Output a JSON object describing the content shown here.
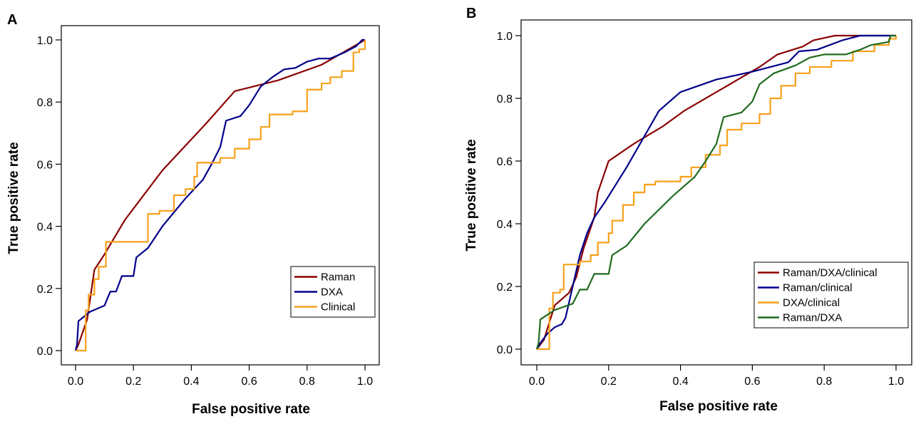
{
  "chart_data": [
    {
      "type": "line",
      "panel_label": "A",
      "xlabel": "False positive rate",
      "ylabel": "True positive rate",
      "xlim": [
        0,
        1
      ],
      "ylim": [
        0,
        1
      ],
      "xticks": [
        "0.0",
        "0.2",
        "0.4",
        "0.6",
        "0.8",
        "1.0"
      ],
      "yticks": [
        "0.0",
        "0.2",
        "0.4",
        "0.6",
        "0.8",
        "1.0"
      ],
      "grid": false,
      "legend_position": "bottom-right",
      "series": [
        {
          "name": "Raman",
          "color": "#8b0000",
          "step": false,
          "points": [
            [
              0.0,
              0.0
            ],
            [
              0.01,
              0.02
            ],
            [
              0.04,
              0.1
            ],
            [
              0.065,
              0.26
            ],
            [
              0.1,
              0.31
            ],
            [
              0.17,
              0.42
            ],
            [
              0.3,
              0.58
            ],
            [
              0.45,
              0.73
            ],
            [
              0.55,
              0.835
            ],
            [
              0.7,
              0.87
            ],
            [
              0.85,
              0.92
            ],
            [
              1.0,
              1.0
            ]
          ]
        },
        {
          "name": "DXA",
          "color": "#00008b",
          "step": false,
          "points": [
            [
              0.0,
              0.0
            ],
            [
              0.005,
              0.02
            ],
            [
              0.01,
              0.095
            ],
            [
              0.05,
              0.125
            ],
            [
              0.1,
              0.145
            ],
            [
              0.12,
              0.19
            ],
            [
              0.14,
              0.19
            ],
            [
              0.16,
              0.24
            ],
            [
              0.2,
              0.24
            ],
            [
              0.21,
              0.3
            ],
            [
              0.25,
              0.33
            ],
            [
              0.3,
              0.4
            ],
            [
              0.38,
              0.49
            ],
            [
              0.44,
              0.55
            ],
            [
              0.47,
              0.6
            ],
            [
              0.5,
              0.655
            ],
            [
              0.52,
              0.74
            ],
            [
              0.57,
              0.755
            ],
            [
              0.6,
              0.79
            ],
            [
              0.64,
              0.85
            ],
            [
              0.68,
              0.88
            ],
            [
              0.72,
              0.905
            ],
            [
              0.76,
              0.91
            ],
            [
              0.8,
              0.93
            ],
            [
              0.84,
              0.94
            ],
            [
              0.88,
              0.94
            ],
            [
              0.93,
              0.96
            ],
            [
              0.97,
              0.98
            ],
            [
              0.99,
              1.0
            ],
            [
              1.0,
              1.0
            ]
          ]
        },
        {
          "name": "Clinical",
          "color": "#f7a11a",
          "step": true,
          "points": [
            [
              0.0,
              0.0
            ],
            [
              0.035,
              0.0
            ],
            [
              0.035,
              0.13
            ],
            [
              0.045,
              0.18
            ],
            [
              0.055,
              0.18
            ],
            [
              0.065,
              0.23
            ],
            [
              0.08,
              0.27
            ],
            [
              0.105,
              0.35
            ],
            [
              0.22,
              0.35
            ],
            [
              0.25,
              0.44
            ],
            [
              0.29,
              0.45
            ],
            [
              0.34,
              0.5
            ],
            [
              0.38,
              0.52
            ],
            [
              0.41,
              0.56
            ],
            [
              0.42,
              0.605
            ],
            [
              0.5,
              0.62
            ],
            [
              0.55,
              0.65
            ],
            [
              0.6,
              0.68
            ],
            [
              0.64,
              0.72
            ],
            [
              0.67,
              0.76
            ],
            [
              0.75,
              0.77
            ],
            [
              0.8,
              0.84
            ],
            [
              0.85,
              0.86
            ],
            [
              0.88,
              0.88
            ],
            [
              0.92,
              0.9
            ],
            [
              0.96,
              0.96
            ],
            [
              0.98,
              0.97
            ],
            [
              1.0,
              1.0
            ]
          ]
        }
      ]
    },
    {
      "type": "line",
      "panel_label": "B",
      "xlabel": "False positive rate",
      "ylabel": "True positive rate",
      "xlim": [
        0,
        1
      ],
      "ylim": [
        0,
        1
      ],
      "xticks": [
        "0.0",
        "0.2",
        "0.4",
        "0.6",
        "0.8",
        "1.0"
      ],
      "yticks": [
        "0.0",
        "0.2",
        "0.4",
        "0.6",
        "0.8",
        "1.0"
      ],
      "grid": false,
      "legend_position": "bottom-right",
      "series": [
        {
          "name": "Raman/DXA/clinical",
          "color": "#8b0000",
          "step": false,
          "points": [
            [
              0.0,
              0.0
            ],
            [
              0.02,
              0.03
            ],
            [
              0.05,
              0.14
            ],
            [
              0.09,
              0.18
            ],
            [
              0.11,
              0.23
            ],
            [
              0.13,
              0.32
            ],
            [
              0.16,
              0.42
            ],
            [
              0.17,
              0.5
            ],
            [
              0.2,
              0.6
            ],
            [
              0.27,
              0.655
            ],
            [
              0.35,
              0.71
            ],
            [
              0.41,
              0.76
            ],
            [
              0.5,
              0.82
            ],
            [
              0.56,
              0.86
            ],
            [
              0.62,
              0.9
            ],
            [
              0.67,
              0.94
            ],
            [
              0.74,
              0.965
            ],
            [
              0.77,
              0.985
            ],
            [
              0.83,
              1.0
            ],
            [
              1.0,
              1.0
            ]
          ]
        },
        {
          "name": "Raman/clinical",
          "color": "#00008b",
          "step": false,
          "points": [
            [
              0.0,
              0.0
            ],
            [
              0.01,
              0.02
            ],
            [
              0.03,
              0.05
            ],
            [
              0.05,
              0.07
            ],
            [
              0.07,
              0.08
            ],
            [
              0.08,
              0.1
            ],
            [
              0.09,
              0.15
            ],
            [
              0.1,
              0.2
            ],
            [
              0.11,
              0.25
            ],
            [
              0.12,
              0.3
            ],
            [
              0.14,
              0.37
            ],
            [
              0.16,
              0.42
            ],
            [
              0.19,
              0.47
            ],
            [
              0.25,
              0.58
            ],
            [
              0.34,
              0.76
            ],
            [
              0.4,
              0.82
            ],
            [
              0.5,
              0.86
            ],
            [
              0.6,
              0.885
            ],
            [
              0.7,
              0.915
            ],
            [
              0.73,
              0.95
            ],
            [
              0.78,
              0.955
            ],
            [
              0.85,
              0.985
            ],
            [
              0.9,
              1.0
            ],
            [
              1.0,
              1.0
            ]
          ]
        },
        {
          "name": "DXA/clinical",
          "color": "#f7a11a",
          "step": true,
          "points": [
            [
              0.0,
              0.0
            ],
            [
              0.035,
              0.0
            ],
            [
              0.035,
              0.13
            ],
            [
              0.045,
              0.18
            ],
            [
              0.055,
              0.18
            ],
            [
              0.065,
              0.19
            ],
            [
              0.075,
              0.27
            ],
            [
              0.105,
              0.27
            ],
            [
              0.12,
              0.28
            ],
            [
              0.15,
              0.3
            ],
            [
              0.17,
              0.34
            ],
            [
              0.2,
              0.37
            ],
            [
              0.21,
              0.41
            ],
            [
              0.24,
              0.46
            ],
            [
              0.27,
              0.5
            ],
            [
              0.3,
              0.525
            ],
            [
              0.33,
              0.535
            ],
            [
              0.4,
              0.55
            ],
            [
              0.43,
              0.58
            ],
            [
              0.47,
              0.62
            ],
            [
              0.51,
              0.65
            ],
            [
              0.53,
              0.7
            ],
            [
              0.57,
              0.72
            ],
            [
              0.62,
              0.75
            ],
            [
              0.65,
              0.8
            ],
            [
              0.68,
              0.84
            ],
            [
              0.72,
              0.88
            ],
            [
              0.76,
              0.9
            ],
            [
              0.82,
              0.92
            ],
            [
              0.88,
              0.95
            ],
            [
              0.94,
              0.97
            ],
            [
              0.98,
              0.99
            ],
            [
              1.0,
              1.0
            ]
          ]
        },
        {
          "name": "Raman/DXA",
          "color": "#1f6b1f",
          "step": false,
          "points": [
            [
              0.0,
              0.0
            ],
            [
              0.005,
              0.02
            ],
            [
              0.01,
              0.095
            ],
            [
              0.05,
              0.125
            ],
            [
              0.1,
              0.145
            ],
            [
              0.12,
              0.19
            ],
            [
              0.14,
              0.19
            ],
            [
              0.16,
              0.24
            ],
            [
              0.2,
              0.24
            ],
            [
              0.21,
              0.3
            ],
            [
              0.25,
              0.33
            ],
            [
              0.3,
              0.4
            ],
            [
              0.38,
              0.49
            ],
            [
              0.44,
              0.55
            ],
            [
              0.47,
              0.6
            ],
            [
              0.5,
              0.655
            ],
            [
              0.52,
              0.74
            ],
            [
              0.57,
              0.755
            ],
            [
              0.6,
              0.79
            ],
            [
              0.62,
              0.845
            ],
            [
              0.66,
              0.88
            ],
            [
              0.72,
              0.905
            ],
            [
              0.76,
              0.93
            ],
            [
              0.8,
              0.94
            ],
            [
              0.86,
              0.94
            ],
            [
              0.9,
              0.955
            ],
            [
              0.93,
              0.97
            ],
            [
              0.98,
              0.98
            ],
            [
              0.985,
              1.0
            ],
            [
              1.0,
              1.0
            ]
          ]
        }
      ]
    }
  ]
}
